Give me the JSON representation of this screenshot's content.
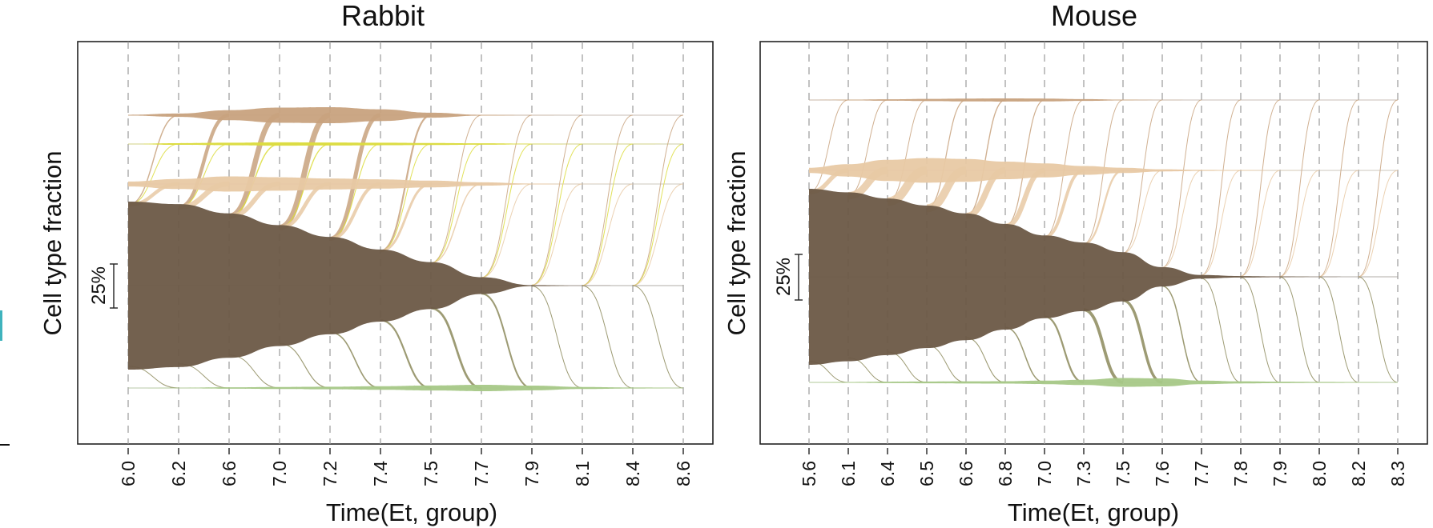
{
  "figure": {
    "colors": {
      "early": "#6b5846",
      "tan": "#c8a27e",
      "yellow": "#dcdc3c",
      "beige": "#e8c9a4",
      "green": "#a6c887",
      "olive_flow": "#8c8a5c"
    }
  },
  "chart_data": [
    {
      "type": "area",
      "subtype": "alluvial-flow",
      "title": "Rabbit",
      "xlabel": "Time(Et, group)",
      "ylabel": "Cell type fraction",
      "x": [
        "6.0",
        "6.2",
        "6.6",
        "7.0",
        "7.2",
        "7.4",
        "7.5",
        "7.7",
        "7.9",
        "8.1",
        "8.4",
        "8.6"
      ],
      "scale_bar": {
        "label": "25%",
        "fraction": 0.25
      },
      "grid": true,
      "legend": "none",
      "lanes": [
        {
          "color": "#c8a27e",
          "fractions": [
            0.005,
            0.02,
            0.06,
            0.09,
            0.095,
            0.07,
            0.03,
            0.005,
            0.002,
            0.001,
            0.001,
            0.001
          ]
        },
        {
          "color": "#dcdc3c",
          "fractions": [
            0.002,
            0.01,
            0.015,
            0.02,
            0.018,
            0.015,
            0.012,
            0.008,
            0.004,
            0.002,
            0.002,
            0.001
          ]
        },
        {
          "color": "#e8c9a4",
          "fractions": [
            0.03,
            0.06,
            0.09,
            0.08,
            0.065,
            0.055,
            0.04,
            0.02,
            0.005,
            0.002,
            0.001,
            0.001
          ]
        },
        {
          "color": "#6b5846",
          "fractions": [
            1.0,
            0.97,
            0.86,
            0.72,
            0.58,
            0.43,
            0.28,
            0.1,
            0.006,
            0.002,
            0.001,
            0.001
          ]
        },
        {
          "color": "#a6c887",
          "fractions": [
            0.002,
            0.004,
            0.008,
            0.012,
            0.016,
            0.022,
            0.03,
            0.038,
            0.028,
            0.012,
            0.006,
            0.004
          ]
        }
      ]
    },
    {
      "type": "area",
      "subtype": "alluvial-flow",
      "title": "Mouse",
      "xlabel": "Time(Et, group)",
      "ylabel": "Cell type fraction",
      "x": [
        "5.6",
        "6.1",
        "6.4",
        "6.5",
        "6.6",
        "6.8",
        "7.0",
        "7.3",
        "7.5",
        "7.6",
        "7.7",
        "7.8",
        "7.9",
        "8.0",
        "8.2",
        "8.3"
      ],
      "scale_bar": {
        "label": "25%",
        "fraction": 0.25
      },
      "grid": true,
      "legend": "none",
      "lanes": [
        {
          "color": "#c8a27e",
          "fractions": [
            0.002,
            0.004,
            0.008,
            0.012,
            0.016,
            0.018,
            0.016,
            0.01,
            0.004,
            0.002,
            0.001,
            0.001,
            0.001,
            0.001,
            0.001,
            0.001
          ]
        },
        {
          "color": "#e8c9a4",
          "fractions": [
            0.03,
            0.07,
            0.12,
            0.14,
            0.13,
            0.1,
            0.08,
            0.05,
            0.03,
            0.012,
            0.006,
            0.004,
            0.002,
            0.001,
            0.001,
            0.001
          ]
        },
        {
          "color": "#6b5846",
          "fractions": [
            1.0,
            0.96,
            0.89,
            0.81,
            0.72,
            0.6,
            0.47,
            0.39,
            0.28,
            0.11,
            0.02,
            0.008,
            0.004,
            0.002,
            0.001,
            0.001
          ]
        },
        {
          "color": "#a6c887",
          "fractions": [
            0.003,
            0.005,
            0.008,
            0.01,
            0.012,
            0.014,
            0.02,
            0.03,
            0.05,
            0.045,
            0.02,
            0.012,
            0.008,
            0.006,
            0.004,
            0.003
          ]
        }
      ]
    }
  ]
}
